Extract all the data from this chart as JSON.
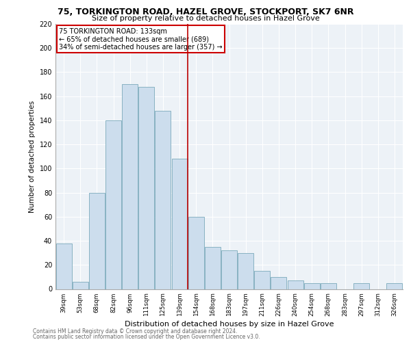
{
  "title1": "75, TORKINGTON ROAD, HAZEL GROVE, STOCKPORT, SK7 6NR",
  "title2": "Size of property relative to detached houses in Hazel Grove",
  "xlabel": "Distribution of detached houses by size in Hazel Grove",
  "ylabel": "Number of detached properties",
  "footnote1": "Contains HM Land Registry data © Crown copyright and database right 2024.",
  "footnote2": "Contains public sector information licensed under the Open Government Licence v3.0.",
  "annotation_line1": "75 TORKINGTON ROAD: 133sqm",
  "annotation_line2": "← 65% of detached houses are smaller (689)",
  "annotation_line3": "34% of semi-detached houses are larger (357) →",
  "categories": [
    "39sqm",
    "53sqm",
    "68sqm",
    "82sqm",
    "96sqm",
    "111sqm",
    "125sqm",
    "139sqm",
    "154sqm",
    "168sqm",
    "183sqm",
    "197sqm",
    "211sqm",
    "226sqm",
    "240sqm",
    "254sqm",
    "268sqm",
    "283sqm",
    "297sqm",
    "312sqm",
    "326sqm"
  ],
  "values": [
    38,
    6,
    80,
    140,
    170,
    168,
    148,
    108,
    60,
    35,
    32,
    30,
    15,
    10,
    7,
    5,
    5,
    0,
    5,
    0,
    5
  ],
  "bar_color": "#ccdded",
  "bar_edge_color": "#7aaabb",
  "vline_color": "#bb0000",
  "vline_x": 7.5,
  "annotation_box_color": "#cc0000",
  "background_color": "#edf2f7",
  "ylim": [
    0,
    220
  ],
  "yticks": [
    0,
    20,
    40,
    60,
    80,
    100,
    120,
    140,
    160,
    180,
    200,
    220
  ]
}
